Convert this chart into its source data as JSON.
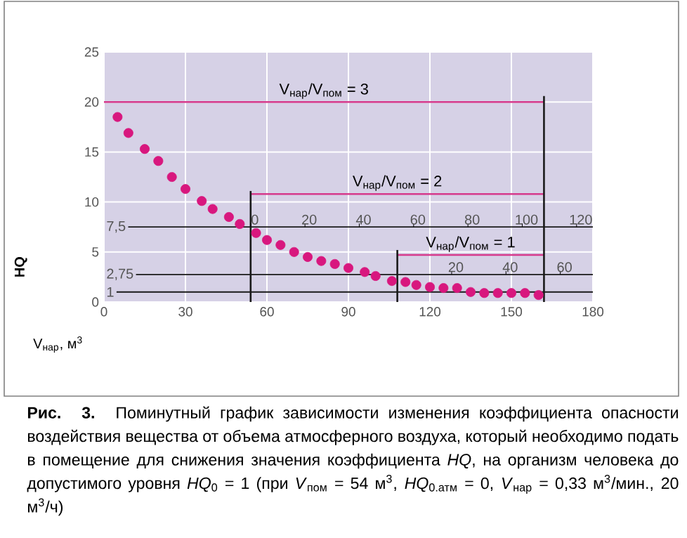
{
  "chart_data": {
    "type": "scatter",
    "xlabel": "V$_{нар}$, м$^{3}$",
    "ylabel": "HQ",
    "xlim": [
      0,
      180
    ],
    "ylim": [
      0,
      25
    ],
    "xticks": [
      0,
      30,
      60,
      90,
      120,
      150,
      180
    ],
    "yticks": [
      0,
      5,
      10,
      15,
      20,
      25
    ],
    "grid": true,
    "series": [
      {
        "marker": "circle",
        "color": "#d8177e",
        "x": [
          5,
          9,
          15,
          20,
          25,
          30,
          36,
          40,
          46,
          50,
          56,
          60,
          65,
          70,
          75,
          80,
          85,
          90,
          96,
          100,
          106,
          111,
          115,
          120,
          125,
          130,
          135,
          140,
          145,
          150,
          155,
          160
        ],
        "values": [
          18.5,
          16.9,
          15.3,
          14.1,
          12.5,
          11.3,
          10.1,
          9.3,
          8.5,
          7.8,
          6.9,
          6.2,
          5.7,
          5.0,
          4.5,
          4.1,
          3.8,
          3.4,
          3.0,
          2.6,
          2.1,
          2.0,
          1.7,
          1.5,
          1.4,
          1.4,
          1.0,
          0.9,
          0.9,
          0.9,
          0.9,
          0.7
        ]
      },
      {
        "type": "line",
        "marker": "none",
        "name": "V$_{нар}$/V$_{пом}$ = 3",
        "color": "#d63a8c",
        "x": [
          0,
          162
        ],
        "values": [
          20,
          20
        ]
      },
      {
        "type": "line",
        "marker": "none",
        "name": "V$_{нар}$/V$_{пом}$ = 2",
        "color": "#d63a8c",
        "x": [
          54,
          162
        ],
        "values": [
          10.8,
          10.8
        ]
      },
      {
        "type": "line",
        "marker": "none",
        "name": "V$_{нар}$/V$_{пом}$ = 1",
        "color": "#d63a8c",
        "x": [
          108,
          162
        ],
        "values": [
          4.7,
          4.7
        ]
      },
      {
        "type": "line",
        "marker": "none",
        "color": "#1a1a1a",
        "x": [
          54,
          54
        ],
        "values": [
          0,
          11.1
        ]
      },
      {
        "type": "line",
        "marker": "none",
        "color": "#1a1a1a",
        "x": [
          108,
          108
        ],
        "values": [
          0,
          5.2
        ]
      },
      {
        "type": "line",
        "marker": "none",
        "color": "#1a1a1a",
        "x": [
          162,
          162
        ],
        "values": [
          0,
          20.6
        ]
      }
    ],
    "ref_lines": [
      {
        "axis": "y",
        "value": 7.5,
        "label": "7,5",
        "color": "#1a1a1a"
      },
      {
        "axis": "y",
        "value": 2.75,
        "label": "2,75",
        "color": "#1a1a1a"
      },
      {
        "axis": "y",
        "value": 1,
        "label": "1",
        "color": "#1a1a1a"
      }
    ],
    "annotations": [
      {
        "text": "0",
        "x": 54,
        "y": 7.5
      },
      {
        "text": "20",
        "x": 74,
        "y": 7.5
      },
      {
        "text": "40",
        "x": 94,
        "y": 7.5
      },
      {
        "text": "60",
        "x": 114,
        "y": 7.5
      },
      {
        "text": "80",
        "x": 134,
        "y": 7.5
      },
      {
        "text": "100",
        "x": 154,
        "y": 7.5
      },
      {
        "text": "120",
        "x": 174,
        "y": 7.5
      },
      {
        "text": "20",
        "x": 128,
        "y": 2.75
      },
      {
        "text": "40",
        "x": 148,
        "y": 2.75
      },
      {
        "text": "60",
        "x": 168,
        "y": 2.75
      },
      "**Рис. 3.** Поминутный график зависимости изменения коэффициента опасности воздействия вещества от объема атмосферного воздуха, который необходимо подать в помещение для снижения значения коэффициента *HQ*, на организм человека до допустимого уровня *HQ*$_{0}$ = 1 (при *V*$_{пом}$ = 54 м$^{3}$, *HQ*$_{0.атм}$ = 0, *V*$_{нар}$ = 0,33 м$^{3}$/мин., 20 м$^{3}$/ч)"
    ]
  }
}
